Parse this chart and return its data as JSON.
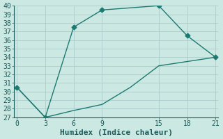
{
  "line1_x": [
    0,
    3,
    6,
    9,
    15,
    18,
    21
  ],
  "line1_y": [
    30.5,
    27,
    37.5,
    39.5,
    40,
    36.5,
    34
  ],
  "line2_x": [
    0,
    3,
    6,
    9,
    12,
    15,
    18,
    21
  ],
  "line2_y": [
    30.5,
    27,
    27.8,
    28.5,
    30.5,
    33.0,
    33.5,
    34
  ],
  "color": "#1c7a70",
  "bg_color": "#cce8e3",
  "grid_color": "#aacccc",
  "xlabel": "Humidex (Indice chaleur)",
  "xlim": [
    -0.3,
    21.3
  ],
  "ylim": [
    27,
    40
  ],
  "xticks": [
    0,
    3,
    6,
    9,
    15,
    18,
    21
  ],
  "yticks": [
    27,
    28,
    29,
    30,
    31,
    32,
    33,
    34,
    35,
    36,
    37,
    38,
    39,
    40
  ],
  "marker": "D",
  "markersize": 3.5,
  "linewidth": 1.0,
  "xlabel_fontsize": 8,
  "tick_fontsize": 7
}
